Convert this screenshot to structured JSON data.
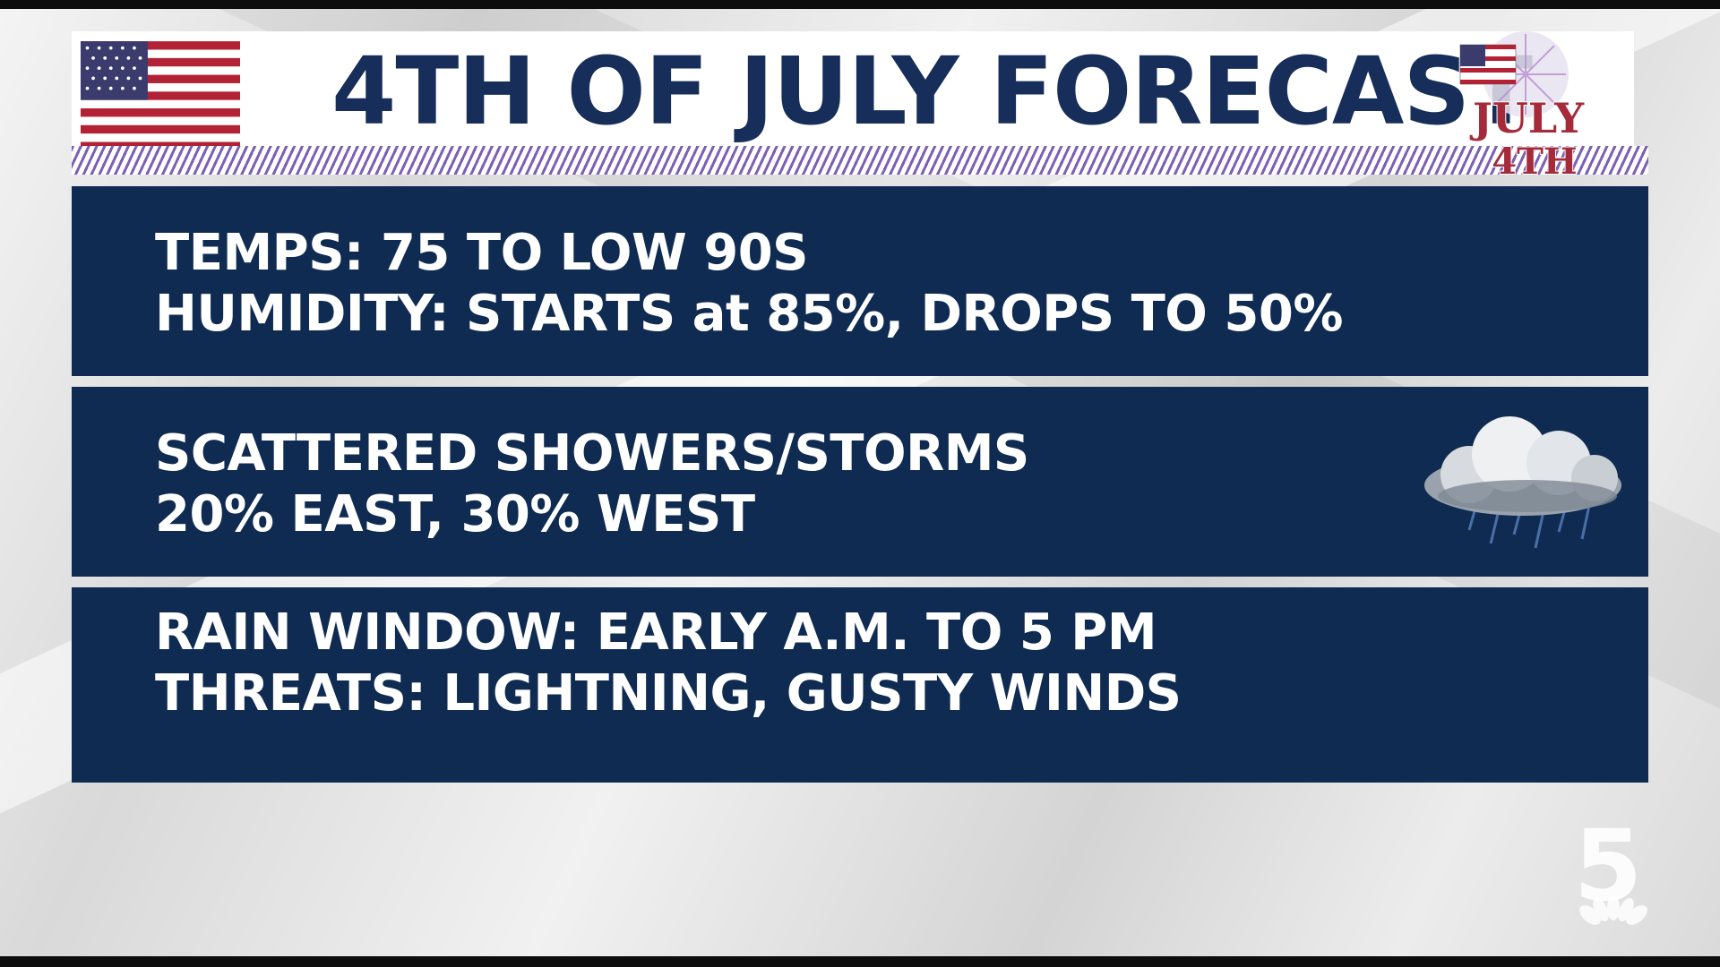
{
  "header": {
    "title": "4TH OF JULY FORECAST",
    "badge_text_top": "JULY",
    "badge_text_bottom": "4TH"
  },
  "panels": [
    {
      "line1": "TEMPS: 75 TO LOW 90S",
      "line2": "HUMIDITY: STARTS at 85%, DROPS TO 50%"
    },
    {
      "line1": "SCATTERED SHOWERS/STORMS",
      "line2": "20% EAST, 30% WEST",
      "icon": "rain-cloud-icon"
    },
    {
      "line1": "RAIN WINDOW: EARLY A.M. TO 5 PM",
      "line2": "THREATS: LIGHTNING, GUSTY WINDS"
    }
  ],
  "station_logo": {
    "number": "5"
  },
  "colors": {
    "panel": "#0f2b52",
    "title": "#162e59",
    "stripes": "#7d5fb4",
    "flag_red": "#b22234",
    "flag_blue": "#3c3b6e"
  }
}
